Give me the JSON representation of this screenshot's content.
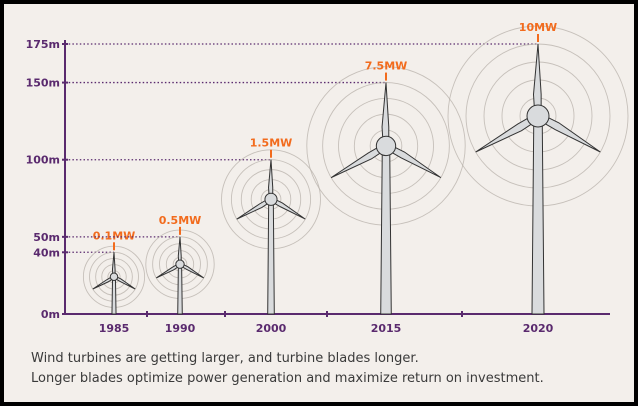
{
  "chart_data": {
    "type": "bar",
    "title": "",
    "xlabel": "",
    "ylabel": "",
    "ylim": [
      0,
      175
    ],
    "y_ticks": [
      {
        "value": 0,
        "label": "0m"
      },
      {
        "value": 40,
        "label": "40m"
      },
      {
        "value": 50,
        "label": "50m"
      },
      {
        "value": 100,
        "label": "100m"
      },
      {
        "value": 150,
        "label": "150m"
      },
      {
        "value": 175,
        "label": "175m"
      }
    ],
    "categories": [
      "1985",
      "1990",
      "2000",
      "2015",
      "2020"
    ],
    "series": [
      {
        "name": "",
        "values": [
          40,
          50,
          100,
          150,
          175
        ]
      }
    ],
    "capacity_labels": [
      "0.1MW",
      "0.5MW",
      "1.5MW",
      "7.5MW",
      "10MW"
    ],
    "grid": false,
    "legend": "none"
  },
  "caption": {
    "line1": "Wind turbines are getting larger, and turbine blades longer.",
    "line2": "Longer blades optimize power generation and maximize return on investment."
  },
  "colors": {
    "axis": "#5a2a6e",
    "capacity_label": "#f26b1d",
    "tower": "#d9dbdd",
    "outline": "#333333",
    "background": "#f3efeb"
  }
}
